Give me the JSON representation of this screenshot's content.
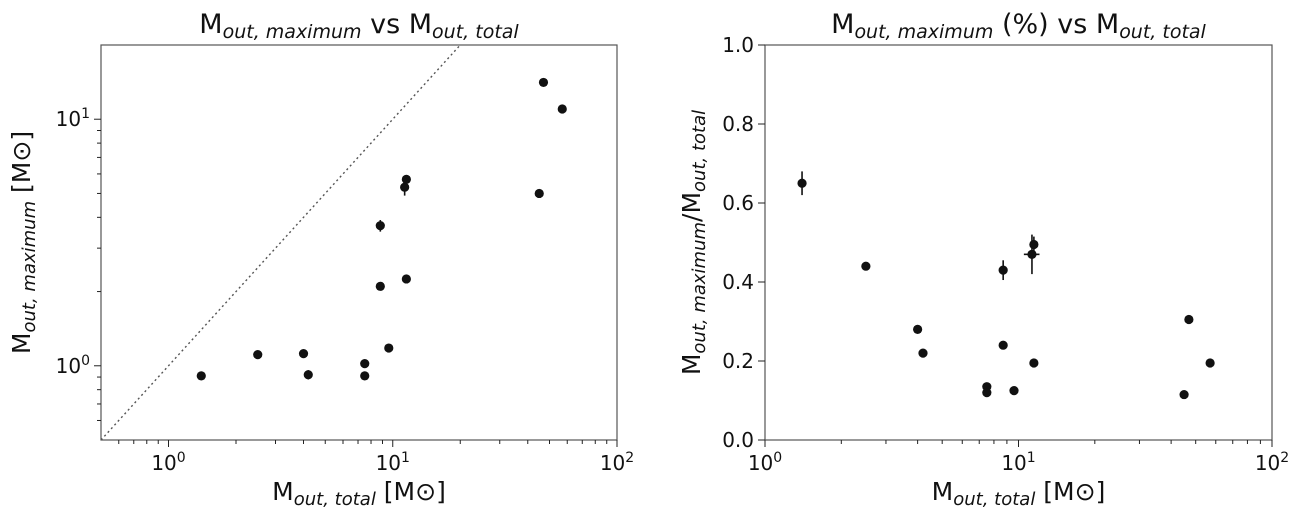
{
  "chart_data": [
    {
      "type": "scatter",
      "title_parts": [
        {
          "t": "M",
          "s": "normal"
        },
        {
          "t": "out, maximum",
          "s": "subital"
        },
        {
          "t": " vs M",
          "s": "normal"
        },
        {
          "t": "out, total",
          "s": "subital"
        }
      ],
      "xlabel_parts": [
        {
          "t": "M",
          "s": "normal"
        },
        {
          "t": "out, total",
          "s": "subital"
        },
        {
          "t": " [M",
          "s": "normal"
        },
        {
          "t": "⊙",
          "s": "normal"
        },
        {
          "t": "]",
          "s": "normal"
        }
      ],
      "ylabel_parts": [
        {
          "t": "M",
          "s": "normal"
        },
        {
          "t": "out, maximum",
          "s": "subital"
        },
        {
          "t": " [M",
          "s": "normal"
        },
        {
          "t": "⊙",
          "s": "normal"
        },
        {
          "t": "]",
          "s": "normal"
        }
      ],
      "xscale": "log",
      "yscale": "log",
      "xlim": [
        0.5,
        100
      ],
      "ylim": [
        0.5,
        20
      ],
      "xticks": [
        {
          "v": 1,
          "base": "10",
          "exp": "0"
        },
        {
          "v": 10,
          "base": "10",
          "exp": "1"
        },
        {
          "v": 100,
          "base": "10",
          "exp": "2"
        }
      ],
      "yticks": [
        {
          "v": 1,
          "base": "10",
          "exp": "0"
        },
        {
          "v": 10,
          "base": "10",
          "exp": "1"
        }
      ],
      "reference_line": "y = x",
      "points": [
        {
          "x": 1.4,
          "y": 0.91
        },
        {
          "x": 2.5,
          "y": 1.11
        },
        {
          "x": 4.0,
          "y": 1.12
        },
        {
          "x": 4.2,
          "y": 0.92,
          "yerr": 0.04
        },
        {
          "x": 7.5,
          "y": 1.02,
          "yerr": 0.04
        },
        {
          "x": 7.5,
          "y": 0.91
        },
        {
          "x": 8.8,
          "y": 2.1
        },
        {
          "x": 8.8,
          "y": 3.7,
          "yerr": 0.2
        },
        {
          "x": 9.6,
          "y": 1.18
        },
        {
          "x": 11.3,
          "y": 5.3,
          "yerr": 0.4
        },
        {
          "x": 11.5,
          "y": 5.7
        },
        {
          "x": 11.5,
          "y": 2.25
        },
        {
          "x": 45,
          "y": 5.0
        },
        {
          "x": 47,
          "y": 14.1
        },
        {
          "x": 57,
          "y": 11.0
        }
      ]
    },
    {
      "type": "scatter",
      "title_parts": [
        {
          "t": "M",
          "s": "normal"
        },
        {
          "t": "out, maximum",
          "s": "subital"
        },
        {
          "t": " (%) vs M",
          "s": "normal"
        },
        {
          "t": "out, total",
          "s": "subital"
        }
      ],
      "xlabel_parts": [
        {
          "t": "M",
          "s": "normal"
        },
        {
          "t": "out, total",
          "s": "subital"
        },
        {
          "t": " [M",
          "s": "normal"
        },
        {
          "t": "⊙",
          "s": "normal"
        },
        {
          "t": "]",
          "s": "normal"
        }
      ],
      "ylabel_parts": [
        {
          "t": "M",
          "s": "normal"
        },
        {
          "t": "out, maximum",
          "s": "subital"
        },
        {
          "t": "/M",
          "s": "normal"
        },
        {
          "t": "out, total",
          "s": "subital"
        }
      ],
      "xscale": "log",
      "yscale": "linear",
      "xlim": [
        1,
        100
      ],
      "ylim": [
        0,
        1.0
      ],
      "xticks": [
        {
          "v": 1,
          "base": "10",
          "exp": "0"
        },
        {
          "v": 10,
          "base": "10",
          "exp": "1"
        },
        {
          "v": 100,
          "base": "10",
          "exp": "2"
        }
      ],
      "yticks": [
        {
          "v": 0.0,
          "label": "0.0"
        },
        {
          "v": 0.2,
          "label": "0.2"
        },
        {
          "v": 0.4,
          "label": "0.4"
        },
        {
          "v": 0.6,
          "label": "0.6"
        },
        {
          "v": 0.8,
          "label": "0.8"
        },
        {
          "v": 1.0,
          "label": "1.0"
        }
      ],
      "points": [
        {
          "x": 1.4,
          "y": 0.65,
          "yerr": 0.03
        },
        {
          "x": 2.5,
          "y": 0.44
        },
        {
          "x": 4.0,
          "y": 0.28
        },
        {
          "x": 4.2,
          "y": 0.22
        },
        {
          "x": 7.5,
          "y": 0.135
        },
        {
          "x": 7.5,
          "y": 0.12
        },
        {
          "x": 8.7,
          "y": 0.24
        },
        {
          "x": 8.7,
          "y": 0.43,
          "yerr": 0.025
        },
        {
          "x": 9.6,
          "y": 0.125
        },
        {
          "x": 11.3,
          "y": 0.47,
          "yerr": 0.05,
          "xerr": 0.8
        },
        {
          "x": 11.5,
          "y": 0.495,
          "yerr": 0.02
        },
        {
          "x": 11.5,
          "y": 0.195
        },
        {
          "x": 45,
          "y": 0.115
        },
        {
          "x": 47,
          "y": 0.305
        },
        {
          "x": 57,
          "y": 0.195
        }
      ]
    }
  ]
}
